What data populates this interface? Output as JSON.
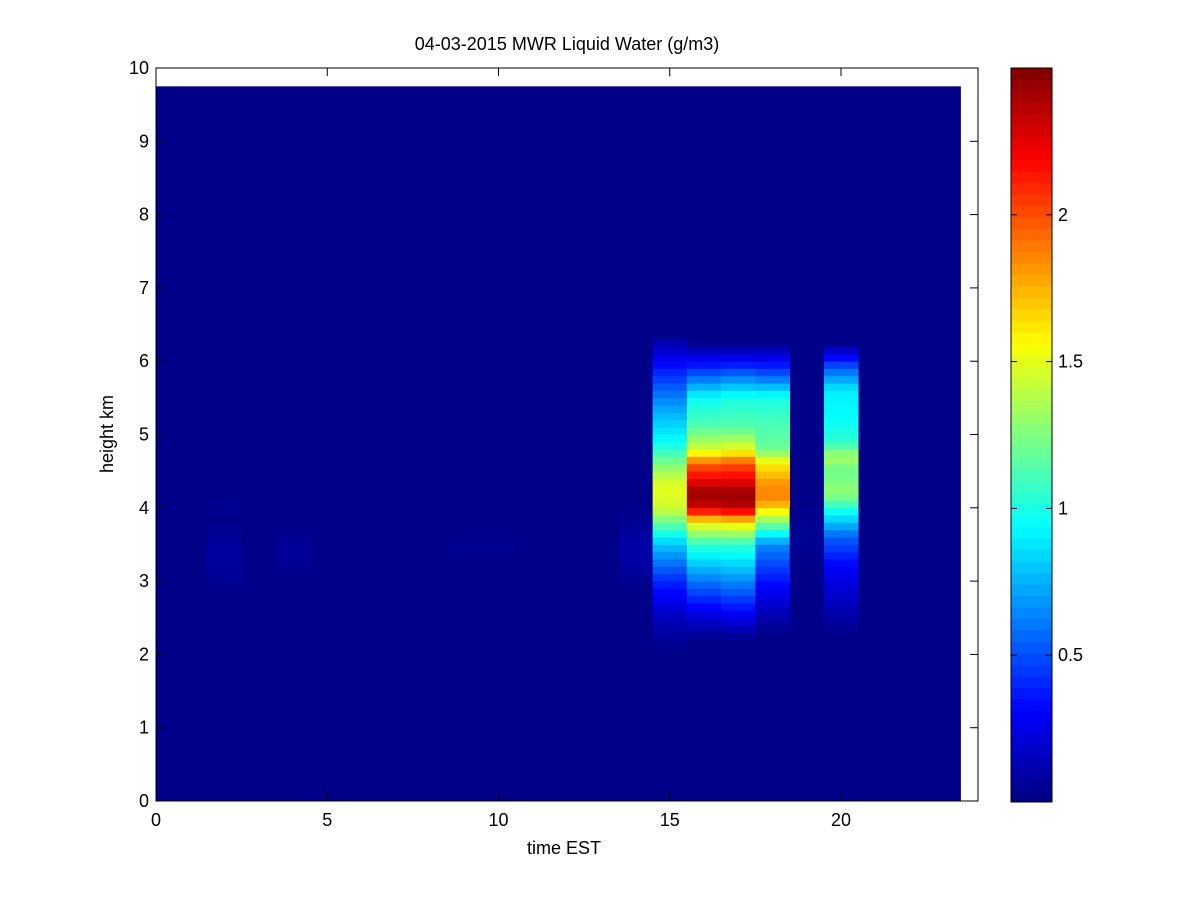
{
  "chart_data": {
    "type": "heatmap",
    "title": "04-03-2015 MWR Liquid Water (g/m3)",
    "xlabel": "time EST",
    "ylabel": "height km",
    "xlim": [
      0,
      24
    ],
    "ylim": [
      0,
      10
    ],
    "x_ticks": [
      0,
      5,
      10,
      15,
      20
    ],
    "y_ticks": [
      0,
      1,
      2,
      3,
      4,
      5,
      6,
      7,
      8,
      9,
      10
    ],
    "colorbar": {
      "colormap": "jet",
      "range": [
        0,
        2.5
      ],
      "ticks": [
        0.5,
        1,
        1.5,
        2
      ]
    },
    "data_extent": {
      "x": [
        0,
        23.5
      ],
      "y": [
        0,
        9.75
      ]
    },
    "background_value": 0.02,
    "columns": [
      {
        "x0": 1.5,
        "x1": 2.5,
        "profile": [
          [
            2.9,
            0.03
          ],
          [
            3.1,
            0.06
          ],
          [
            3.5,
            0.07
          ],
          [
            3.7,
            0.04
          ],
          [
            3.9,
            0.02
          ],
          [
            4.0,
            0.05
          ],
          [
            4.1,
            0.02
          ]
        ]
      },
      {
        "x0": 3.5,
        "x1": 4.5,
        "profile": [
          [
            3.1,
            0.03
          ],
          [
            3.3,
            0.06
          ],
          [
            3.5,
            0.06
          ],
          [
            3.7,
            0.03
          ]
        ]
      },
      {
        "x0": 8.5,
        "x1": 10.5,
        "profile": [
          [
            3.3,
            0.03
          ],
          [
            3.45,
            0.05
          ],
          [
            3.6,
            0.03
          ]
        ]
      },
      {
        "x0": 13.5,
        "x1": 14.5,
        "profile": [
          [
            2.9,
            0.03
          ],
          [
            3.2,
            0.08
          ],
          [
            3.5,
            0.1
          ],
          [
            3.8,
            0.05
          ],
          [
            4.0,
            0.03
          ]
        ]
      },
      {
        "x0": 14.5,
        "x1": 15.5,
        "profile": [
          [
            2.1,
            0.03
          ],
          [
            2.5,
            0.15
          ],
          [
            3.0,
            0.4
          ],
          [
            3.5,
            0.8
          ],
          [
            4.0,
            1.45
          ],
          [
            4.3,
            1.5
          ],
          [
            4.6,
            1.25
          ],
          [
            4.9,
            0.95
          ],
          [
            5.3,
            0.75
          ],
          [
            5.7,
            0.5
          ],
          [
            6.0,
            0.3
          ],
          [
            6.25,
            0.12
          ]
        ]
      },
      {
        "x0": 15.5,
        "x1": 16.5,
        "profile": [
          [
            2.2,
            0.03
          ],
          [
            2.5,
            0.2
          ],
          [
            3.0,
            0.6
          ],
          [
            3.5,
            1.05
          ],
          [
            3.8,
            1.55
          ],
          [
            4.0,
            2.3
          ],
          [
            4.2,
            2.45
          ],
          [
            4.4,
            2.2
          ],
          [
            4.6,
            1.95
          ],
          [
            4.8,
            1.45
          ],
          [
            5.1,
            1.15
          ],
          [
            5.5,
            0.95
          ],
          [
            5.8,
            0.55
          ],
          [
            6.0,
            0.3
          ],
          [
            6.2,
            0.1
          ]
        ]
      },
      {
        "x0": 16.5,
        "x1": 17.5,
        "profile": [
          [
            2.2,
            0.03
          ],
          [
            2.5,
            0.25
          ],
          [
            3.0,
            0.65
          ],
          [
            3.5,
            1.05
          ],
          [
            3.8,
            1.6
          ],
          [
            4.0,
            2.35
          ],
          [
            4.2,
            2.45
          ],
          [
            4.4,
            2.2
          ],
          [
            4.6,
            2.0
          ],
          [
            4.8,
            1.5
          ],
          [
            5.1,
            1.15
          ],
          [
            5.5,
            1.0
          ],
          [
            5.8,
            0.6
          ],
          [
            6.0,
            0.3
          ],
          [
            6.2,
            0.1
          ]
        ]
      },
      {
        "x0": 17.5,
        "x1": 18.5,
        "profile": [
          [
            2.3,
            0.03
          ],
          [
            2.6,
            0.15
          ],
          [
            3.0,
            0.35
          ],
          [
            3.5,
            0.65
          ],
          [
            3.8,
            1.25
          ],
          [
            4.1,
            1.85
          ],
          [
            4.3,
            1.85
          ],
          [
            4.6,
            1.6
          ],
          [
            4.8,
            1.2
          ],
          [
            5.2,
            1.1
          ],
          [
            5.5,
            1.0
          ],
          [
            5.8,
            0.55
          ],
          [
            6.0,
            0.3
          ],
          [
            6.2,
            0.1
          ]
        ]
      },
      {
        "x0": 18.5,
        "x1": 19.5,
        "profile": [
          [
            3.2,
            0.03
          ],
          [
            3.6,
            0.05
          ],
          [
            4.0,
            0.03
          ]
        ]
      },
      {
        "x0": 19.5,
        "x1": 20.5,
        "profile": [
          [
            2.3,
            0.03
          ],
          [
            2.7,
            0.15
          ],
          [
            3.2,
            0.3
          ],
          [
            3.6,
            0.55
          ],
          [
            3.9,
            0.9
          ],
          [
            4.2,
            1.3
          ],
          [
            4.5,
            1.2
          ],
          [
            4.7,
            1.35
          ],
          [
            4.9,
            1.05
          ],
          [
            5.2,
            0.95
          ],
          [
            5.6,
            0.9
          ],
          [
            5.9,
            0.55
          ],
          [
            6.1,
            0.25
          ],
          [
            6.2,
            0.1
          ]
        ]
      }
    ]
  }
}
